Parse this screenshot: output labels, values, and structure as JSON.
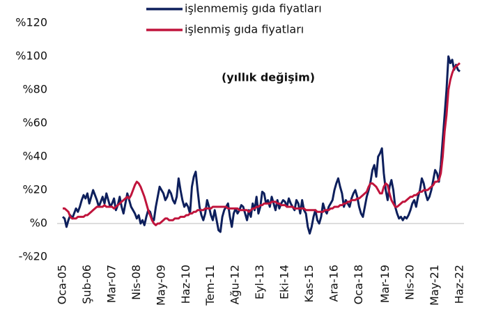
{
  "chart_data": {
    "type": "line",
    "subtitle": "(yıllık değişim)",
    "legend": "top",
    "grid": false,
    "ylim": [
      -20,
      120
    ],
    "yticks": [
      {
        "value": 120,
        "label": "%120"
      },
      {
        "value": 100,
        "label": "%100"
      },
      {
        "value": 80,
        "label": "%80"
      },
      {
        "value": 60,
        "label": "%60"
      },
      {
        "value": 40,
        "label": "%40"
      },
      {
        "value": 20,
        "label": "%20"
      },
      {
        "value": 0,
        "label": "%0"
      },
      {
        "value": -20,
        "label": "-%20"
      }
    ],
    "categories": [
      "Oca-05",
      null,
      null,
      null,
      null,
      null,
      null,
      null,
      null,
      null,
      null,
      null,
      null,
      "Şub-06",
      null,
      null,
      null,
      null,
      null,
      null,
      null,
      null,
      null,
      null,
      null,
      null,
      "Mar-07",
      null,
      null,
      null,
      null,
      null,
      null,
      null,
      null,
      null,
      null,
      null,
      null,
      "Nis-08",
      null,
      null,
      null,
      null,
      null,
      null,
      null,
      null,
      null,
      null,
      null,
      null,
      "May-09",
      null,
      null,
      null,
      null,
      null,
      null,
      null,
      null,
      null,
      null,
      null,
      null,
      "Haz-10",
      null,
      null,
      null,
      null,
      null,
      null,
      null,
      null,
      null,
      null,
      null,
      null,
      "Tem-11",
      null,
      null,
      null,
      null,
      null,
      null,
      null,
      null,
      null,
      null,
      null,
      null,
      "Ağu-12",
      null,
      null,
      null,
      null,
      null,
      null,
      null,
      null,
      null,
      null,
      null,
      null,
      "Eyl-13",
      null,
      null,
      null,
      null,
      null,
      null,
      null,
      null,
      null,
      null,
      null,
      null,
      "Eki-14",
      null,
      null,
      null,
      null,
      null,
      null,
      null,
      null,
      null,
      null,
      null,
      null,
      "Kas-15",
      null,
      null,
      null,
      null,
      null,
      null,
      null,
      null,
      null,
      null,
      null,
      null,
      "Ara-16",
      null,
      null,
      null,
      null,
      null,
      null,
      null,
      null,
      null,
      null,
      null,
      null,
      "Oca-18",
      null,
      null,
      null,
      null,
      null,
      null,
      null,
      null,
      null,
      null,
      null,
      null,
      null,
      "Mar-19",
      null,
      null,
      null,
      null,
      null,
      null,
      null,
      null,
      null,
      null,
      null,
      null,
      "Nis-20",
      null,
      null,
      null,
      null,
      null,
      null,
      null,
      null,
      null,
      null,
      null,
      null,
      "May-21",
      null,
      null,
      null,
      null,
      null,
      null,
      null,
      null,
      null,
      null,
      null,
      null,
      "Haz-22"
    ],
    "series": [
      {
        "name": "işlenmemiş gıda fiyatları",
        "color": "#0d1f5c",
        "values": [
          4,
          3,
          -2,
          2,
          5,
          3,
          6,
          9,
          7,
          10,
          14,
          17,
          15,
          18,
          12,
          16,
          20,
          17,
          14,
          10,
          13,
          16,
          12,
          18,
          14,
          10,
          12,
          15,
          8,
          11,
          16,
          10,
          6,
          12,
          18,
          14,
          10,
          8,
          6,
          3,
          5,
          0,
          2,
          -1,
          4,
          8,
          7,
          3,
          2,
          10,
          16,
          22,
          20,
          18,
          14,
          16,
          20,
          18,
          14,
          12,
          16,
          27,
          20,
          14,
          10,
          12,
          10,
          6,
          22,
          28,
          31,
          20,
          10,
          5,
          2,
          6,
          14,
          10,
          5,
          2,
          8,
          2,
          -4,
          -5,
          4,
          8,
          10,
          12,
          4,
          -2,
          6,
          9,
          6,
          8,
          11,
          10,
          6,
          2,
          8,
          4,
          12,
          8,
          16,
          6,
          10,
          19,
          18,
          12,
          14,
          10,
          16,
          12,
          8,
          14,
          9,
          12,
          14,
          13,
          10,
          15,
          12,
          10,
          8,
          14,
          12,
          6,
          14,
          8,
          6,
          -2,
          -6,
          -2,
          4,
          8,
          2,
          0,
          4,
          12,
          8,
          6,
          10,
          12,
          14,
          20,
          24,
          27,
          22,
          18,
          10,
          14,
          12,
          10,
          15,
          18,
          20,
          16,
          10,
          6,
          4,
          10,
          16,
          20,
          25,
          32,
          35,
          28,
          40,
          42,
          45,
          30,
          20,
          14,
          22,
          26,
          20,
          10,
          6,
          3,
          4,
          2,
          4,
          3,
          5,
          8,
          12,
          14,
          10,
          16,
          20,
          27,
          24,
          18,
          14,
          16,
          20,
          26,
          32,
          30,
          25,
          35,
          50,
          65,
          80,
          100,
          96,
          98,
          92,
          95,
          92,
          91
        ]
      },
      {
        "name": "işlenmiş gıda fiyatları",
        "color": "#c0143c",
        "values": [
          9,
          9,
          8,
          7,
          4,
          3,
          3,
          3,
          4,
          4,
          4,
          4,
          5,
          5,
          6,
          7,
          8,
          9,
          10,
          10,
          10,
          10,
          11,
          10,
          10,
          10,
          10,
          9,
          10,
          11,
          12,
          13,
          14,
          15,
          16,
          15,
          17,
          20,
          23,
          25,
          24,
          22,
          19,
          16,
          12,
          8,
          5,
          2,
          0,
          -1,
          0,
          0,
          1,
          2,
          3,
          3,
          2,
          2,
          2,
          3,
          3,
          3,
          4,
          4,
          4,
          5,
          5,
          6,
          6,
          7,
          7,
          8,
          8,
          8,
          8,
          9,
          9,
          9,
          9,
          10,
          10,
          10,
          10,
          10,
          10,
          10,
          10,
          9,
          9,
          9,
          9,
          9,
          9,
          8,
          8,
          8,
          8,
          8,
          7,
          8,
          9,
          9,
          10,
          10,
          11,
          11,
          12,
          12,
          12,
          12,
          13,
          13,
          13,
          12,
          12,
          11,
          11,
          11,
          10,
          10,
          10,
          10,
          9,
          9,
          9,
          9,
          9,
          9,
          8,
          8,
          8,
          8,
          8,
          8,
          7,
          7,
          7,
          7,
          8,
          8,
          8,
          9,
          9,
          10,
          10,
          10,
          11,
          11,
          12,
          12,
          13,
          13,
          14,
          14,
          14,
          15,
          15,
          16,
          17,
          18,
          19,
          22,
          24,
          24,
          23,
          22,
          20,
          18,
          18,
          22,
          24,
          23,
          18,
          14,
          12,
          10,
          10,
          11,
          12,
          13,
          13,
          14,
          15,
          16,
          16,
          17,
          17,
          18,
          19,
          19,
          20,
          20,
          20,
          21,
          22,
          23,
          25,
          25,
          26,
          30,
          40,
          55,
          65,
          80,
          86,
          90,
          93,
          94,
          95,
          96
        ]
      }
    ]
  }
}
